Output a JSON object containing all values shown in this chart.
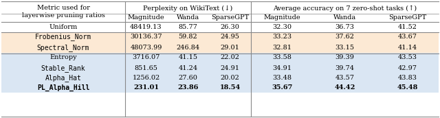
{
  "col_headers_top": [
    "Metric used for\nlayerwise pruning ratios",
    "Perplexity on WikiText (↓)",
    "Average accuracy on 7 zero-shot tasks (↑)"
  ],
  "col_headers_sub": [
    "",
    "Magnitude",
    "Wanda",
    "SparseGPT",
    "Magnitude",
    "Wanda",
    "SparseGPT"
  ],
  "rows": [
    {
      "label": "Uniform",
      "values": [
        "48419.13",
        "85.77",
        "26.30",
        "32.30",
        "36.73",
        "41.52"
      ],
      "group": "white",
      "bold_vals": false,
      "bold_label": false
    },
    {
      "label": "Frobenius_Norm",
      "values": [
        "30136.37",
        "59.82",
        "24.95",
        "33.23",
        "37.62",
        "43.67"
      ],
      "group": "orange",
      "bold_vals": false,
      "bold_label": false
    },
    {
      "label": "Spectral_Norm",
      "values": [
        "48073.99",
        "246.84",
        "29.01",
        "32.81",
        "33.15",
        "41.14"
      ],
      "group": "orange",
      "bold_vals": false,
      "bold_label": false
    },
    {
      "label": "Entropy",
      "values": [
        "3716.07",
        "41.15",
        "22.02",
        "33.58",
        "39.39",
        "43.53"
      ],
      "group": "blue",
      "bold_vals": false,
      "bold_label": false
    },
    {
      "label": "Stable_Rank",
      "values": [
        "851.65",
        "41.24",
        "24.91",
        "34.91",
        "39.74",
        "42.97"
      ],
      "group": "blue",
      "bold_vals": false,
      "bold_label": false
    },
    {
      "label": "Alpha_Hat",
      "values": [
        "1256.02",
        "27.60",
        "20.02",
        "33.48",
        "43.57",
        "43.83"
      ],
      "group": "blue",
      "bold_vals": false,
      "bold_label": false
    },
    {
      "label": "PL_Alpha_Hill",
      "values": [
        "231.01",
        "23.86",
        "18.54",
        "35.67",
        "44.42",
        "45.48"
      ],
      "group": "blue",
      "bold_vals": true,
      "bold_label": true
    }
  ],
  "bg_white": "#ffffff",
  "bg_orange": "#fce9d4",
  "bg_blue": "#dae6f3",
  "line_color": "#888888",
  "text_color": "#000000",
  "font_size": 7.0,
  "mono_font": "DejaVu Sans Mono",
  "serif_font": "DejaVu Serif",
  "fig_w": 6.4,
  "fig_h": 1.72,
  "dpi": 100
}
